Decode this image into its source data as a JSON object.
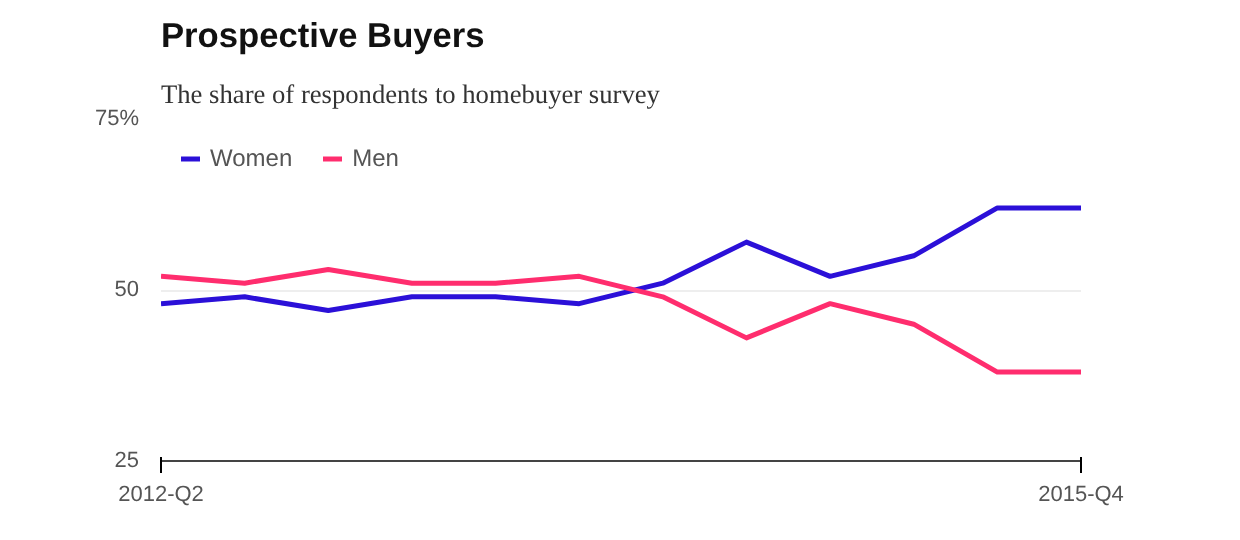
{
  "chart_data": {
    "type": "line",
    "title": "Prospective Buyers",
    "subtitle": "The share of respondents to homebuyer survey",
    "categories": [
      "2012-Q2",
      null,
      null,
      null,
      null,
      null,
      null,
      null,
      null,
      null,
      null,
      "2015-Q4"
    ],
    "series": [
      {
        "name": "Women",
        "color": "#2b10d8",
        "values": [
          48,
          49,
          47,
          49,
          49,
          48,
          51,
          57,
          52,
          55,
          62,
          62
        ]
      },
      {
        "name": "Men",
        "color": "#ff2d6e",
        "values": [
          52,
          51,
          53,
          51,
          51,
          52,
          49,
          43,
          48,
          45,
          38,
          38
        ]
      }
    ],
    "ylim": [
      25,
      75
    ],
    "yticks": [
      25,
      50,
      {
        "value": 75,
        "label": "75%"
      }
    ],
    "grid": "y",
    "legend": "top left",
    "marker": "none",
    "line_style": "solid"
  }
}
